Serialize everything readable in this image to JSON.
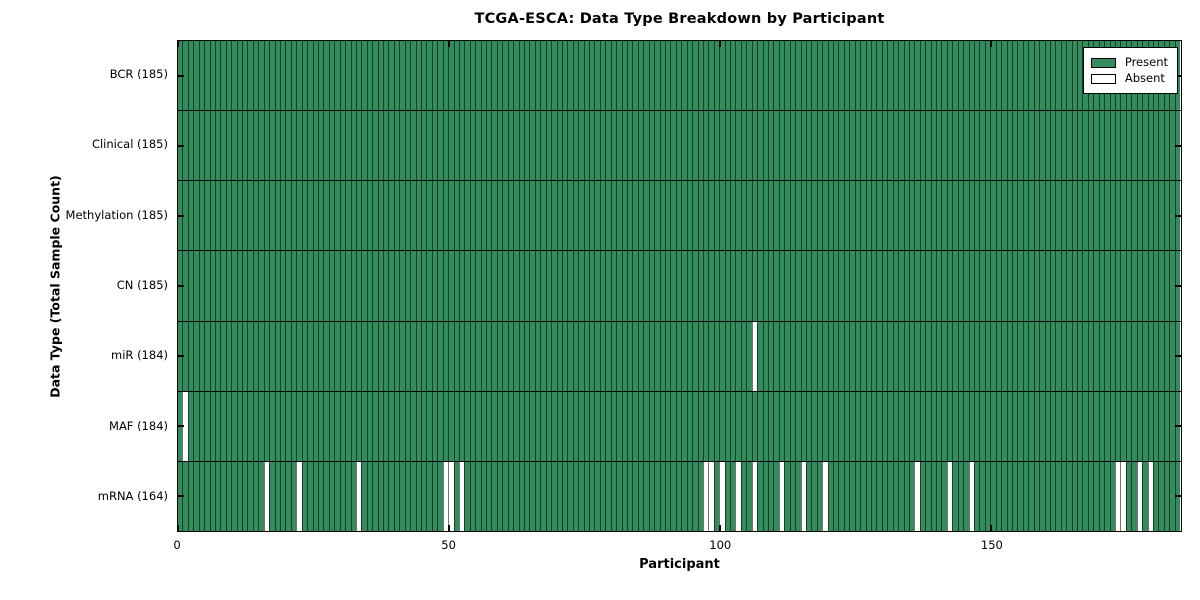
{
  "chart_data": {
    "type": "heatmap",
    "title": "TCGA-ESCA: Data Type Breakdown by Participant",
    "xlabel": "Participant",
    "ylabel": "Data Type (Total Sample Count)",
    "x_ticks": [
      0,
      50,
      100,
      150
    ],
    "xlim": [
      0,
      185
    ],
    "n_participants": 185,
    "grid": false,
    "colors": {
      "present": "#348c5c",
      "absent": "#ffffff",
      "cell_edge": "rgba(0,0,0,0.55)",
      "axis": "#000000"
    },
    "legend": {
      "position": "top-right",
      "entries": [
        {
          "label": "Present",
          "color": "#348c5c"
        },
        {
          "label": "Absent",
          "color": "#ffffff"
        }
      ]
    },
    "rows": [
      {
        "label": "BCR (185)",
        "data_type": "BCR",
        "total": 185,
        "absent_participants": []
      },
      {
        "label": "Clinical (185)",
        "data_type": "Clinical",
        "total": 185,
        "absent_participants": []
      },
      {
        "label": "Methylation (185)",
        "data_type": "Methylation",
        "total": 185,
        "absent_participants": []
      },
      {
        "label": "CN (185)",
        "data_type": "CN",
        "total": 185,
        "absent_participants": []
      },
      {
        "label": "miR (184)",
        "data_type": "miR",
        "total": 184,
        "absent_participants": [
          106
        ]
      },
      {
        "label": "MAF (184)",
        "data_type": "MAF",
        "total": 184,
        "absent_participants": [
          1
        ]
      },
      {
        "label": "mRNA (164)",
        "data_type": "mRNA",
        "total": 164,
        "absent_participants": [
          16,
          22,
          33,
          49,
          50,
          52,
          97,
          98,
          100,
          103,
          106,
          111,
          115,
          119,
          136,
          142,
          146,
          173,
          174,
          177,
          179
        ]
      }
    ]
  }
}
